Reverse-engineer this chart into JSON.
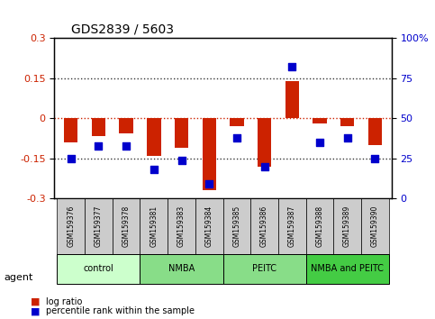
{
  "title": "GDS2839 / 5603",
  "samples": [
    "GSM159376",
    "GSM159377",
    "GSM159378",
    "GSM159381",
    "GSM159383",
    "GSM159384",
    "GSM159385",
    "GSM159386",
    "GSM159387",
    "GSM159388",
    "GSM159389",
    "GSM159390"
  ],
  "log_ratio": [
    -0.09,
    -0.065,
    -0.055,
    -0.14,
    -0.11,
    -0.27,
    -0.03,
    -0.18,
    0.14,
    -0.02,
    -0.03,
    -0.1
  ],
  "percentile_rank": [
    25,
    33,
    33,
    18,
    24,
    9,
    38,
    20,
    82,
    35,
    38,
    25
  ],
  "ylim": [
    -0.3,
    0.3
  ],
  "yticks_left": [
    -0.3,
    -0.15,
    0,
    0.15,
    0.3
  ],
  "yticks_right": [
    0,
    25,
    50,
    75,
    100
  ],
  "hlines": [
    0.15,
    0,
    -0.15
  ],
  "bar_color": "#cc2200",
  "dot_color": "#0000cc",
  "bar_width": 0.5,
  "groups": [
    {
      "label": "control",
      "start": 0,
      "end": 3,
      "color": "#ccffcc"
    },
    {
      "label": "NMBA",
      "start": 3,
      "end": 6,
      "color": "#66dd66"
    },
    {
      "label": "PEITC",
      "start": 6,
      "end": 9,
      "color": "#66dd66"
    },
    {
      "label": "NMBA and PEITC",
      "start": 9,
      "end": 12,
      "color": "#44cc44"
    }
  ],
  "xlabel_agent": "agent",
  "legend_red": "log ratio",
  "legend_blue": "percentile rank within the sample",
  "dotted_color": "#333333",
  "zero_line_color": "#cc2200",
  "xticklabel_color": "#000000",
  "bg_color": "#ffffff",
  "plot_bg": "#ffffff",
  "tick_gray_bg": "#cccccc"
}
